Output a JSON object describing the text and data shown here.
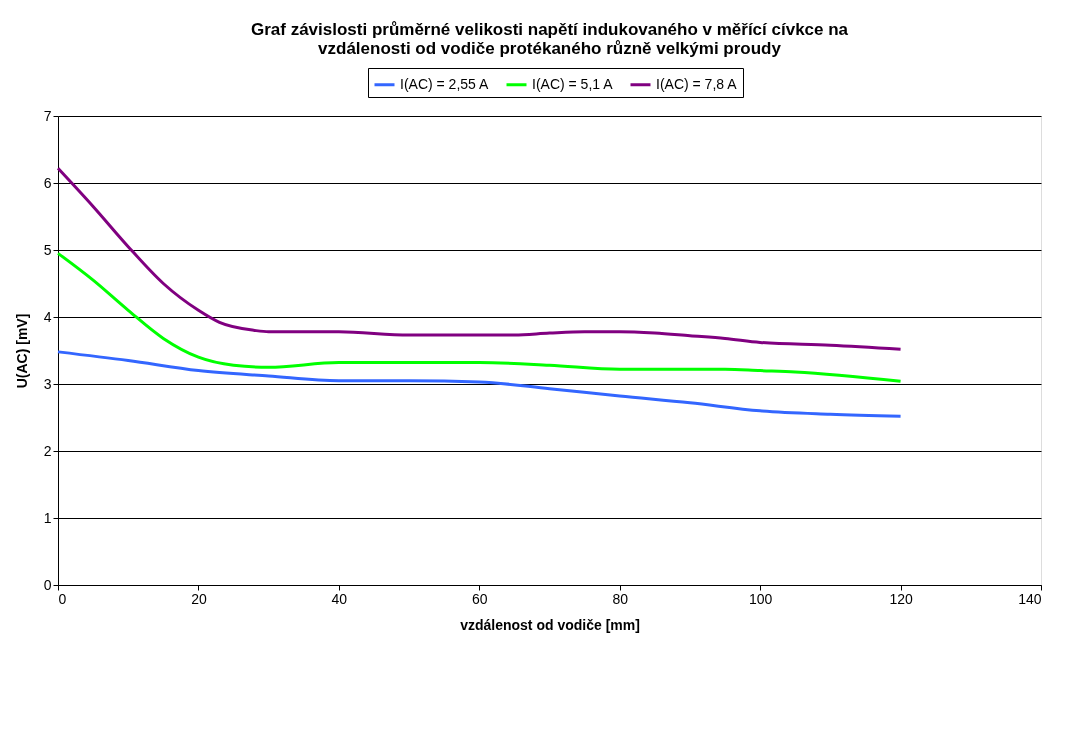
{
  "chart_data": {
    "type": "line",
    "title": "Graf závislosti průměrné velikosti napětí indukovaného v měřící cívkce na\nvzdálenosti od vodiče protékaného různě velkými proudy",
    "xlabel": "vzdálenost od vodiče [mm]",
    "ylabel": "U(AC) [mV]",
    "xlim": [
      0,
      140
    ],
    "xticks": [
      0,
      20,
      40,
      60,
      80,
      100,
      120,
      140
    ],
    "ylim": [
      0,
      7
    ],
    "yticks": [
      0,
      1,
      2,
      3,
      4,
      5,
      6,
      7
    ],
    "grid": "y",
    "legend": "top",
    "marker": "none",
    "line_style": "solid",
    "series": [
      {
        "name": "I(AC) = 2,55 A",
        "color": "#3366ff",
        "x": [
          0,
          10,
          20,
          30,
          40,
          50,
          60,
          70,
          80,
          90,
          100,
          110,
          120
        ],
        "values": [
          3.48,
          3.35,
          3.2,
          3.12,
          3.05,
          3.05,
          3.03,
          2.93,
          2.82,
          2.72,
          2.6,
          2.55,
          2.52
        ]
      },
      {
        "name": "I(AC) = 5,1 A",
        "color": "#00ff00",
        "x": [
          0,
          5,
          10,
          15,
          20,
          25,
          30,
          40,
          50,
          60,
          70,
          80,
          90,
          95,
          100,
          105,
          120
        ],
        "values": [
          4.95,
          4.55,
          4.1,
          3.68,
          3.4,
          3.28,
          3.25,
          3.32,
          3.32,
          3.32,
          3.28,
          3.22,
          3.22,
          3.22,
          3.2,
          3.18,
          3.04
        ]
      },
      {
        "name": "I(AC) = 7,8 A",
        "color": "#800080",
        "x": [
          0,
          5,
          10,
          15,
          20,
          23,
          28,
          30,
          40,
          50,
          60,
          65,
          70,
          75,
          80,
          85,
          90,
          95,
          100,
          110,
          120
        ],
        "values": [
          6.22,
          5.65,
          5.05,
          4.5,
          4.1,
          3.92,
          3.8,
          3.78,
          3.78,
          3.73,
          3.73,
          3.73,
          3.76,
          3.78,
          3.78,
          3.76,
          3.72,
          3.68,
          3.62,
          3.58,
          3.52
        ]
      }
    ]
  }
}
